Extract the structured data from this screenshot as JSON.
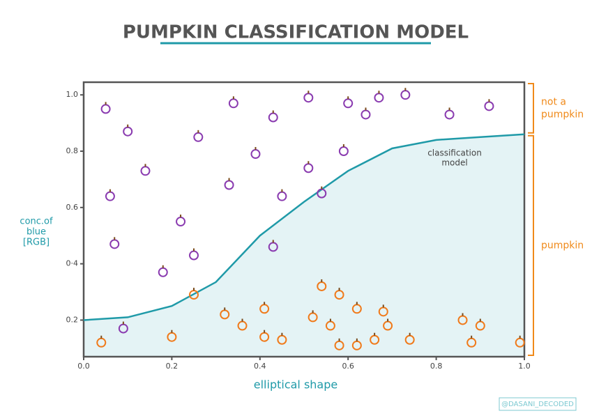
{
  "chart_data": {
    "type": "scatter",
    "title": "PUMPKIN CLASSIFICATION MODEL",
    "x_label": "elliptical shape",
    "y_label": [
      "conc.of",
      "blue",
      "[RGB]"
    ],
    "xlim": [
      0,
      1
    ],
    "ylim": [
      0.07,
      1.045
    ],
    "xticks": [
      {
        "value": 0,
        "label": "0.0"
      },
      0.2,
      0.4,
      0.6,
      0.8,
      {
        "value": 1,
        "label": "1.0"
      }
    ],
    "yticks": [
      0.2,
      {
        "value": 0.4,
        "label": "0·4"
      },
      0.6,
      0.8,
      {
        "value": 1,
        "label": "1.0"
      }
    ],
    "series": [
      {
        "kind": "line",
        "color": "#1f9aa8",
        "fill": "#e4f3f5",
        "x": [
          0,
          0.1,
          0.2,
          0.3,
          0.4,
          0.5,
          0.6,
          0.7,
          0.8,
          0.9,
          1.0
        ],
        "values": [
          0.2,
          0.21,
          0.25,
          0.335,
          0.5,
          0.62,
          0.73,
          0.81,
          0.84,
          0.85,
          0.86
        ]
      },
      {
        "kind": "point",
        "color": "#8a3bb0",
        "x": [
          0.05,
          0.1,
          0.26,
          0.14,
          0.06,
          0.22,
          0.25,
          0.18,
          0.07,
          0.34,
          0.33,
          0.39,
          0.43,
          0.51,
          0.51,
          0.45,
          0.54,
          0.43,
          0.59,
          0.6,
          0.64,
          0.67,
          0.73,
          0.83,
          0.92,
          0.09
        ],
        "values": [
          0.95,
          0.87,
          0.85,
          0.73,
          0.64,
          0.55,
          0.43,
          0.37,
          0.47,
          0.97,
          0.68,
          0.79,
          0.92,
          0.99,
          0.74,
          0.64,
          0.65,
          0.46,
          0.8,
          0.97,
          0.93,
          0.99,
          1.0,
          0.93,
          0.96,
          0.17
        ]
      },
      {
        "kind": "point",
        "color": "#f07a1a",
        "x": [
          0.04,
          0.2,
          0.25,
          0.32,
          0.36,
          0.41,
          0.41,
          0.45,
          0.52,
          0.54,
          0.56,
          0.58,
          0.58,
          0.62,
          0.62,
          0.66,
          0.68,
          0.69,
          0.74,
          0.86,
          0.9,
          0.88,
          0.99
        ],
        "values": [
          0.12,
          0.14,
          0.29,
          0.22,
          0.18,
          0.14,
          0.24,
          0.13,
          0.21,
          0.32,
          0.18,
          0.11,
          0.29,
          0.24,
          0.11,
          0.13,
          0.23,
          0.18,
          0.13,
          0.2,
          0.18,
          0.12,
          0.12
        ]
      }
    ],
    "curve_label": [
      "classification",
      "model"
    ],
    "brackets": [
      {
        "label": [
          "not a",
          "pumpkin"
        ]
      },
      {
        "label": [
          "pumpkin"
        ]
      }
    ],
    "credit": "@DASANI_DECODED"
  }
}
